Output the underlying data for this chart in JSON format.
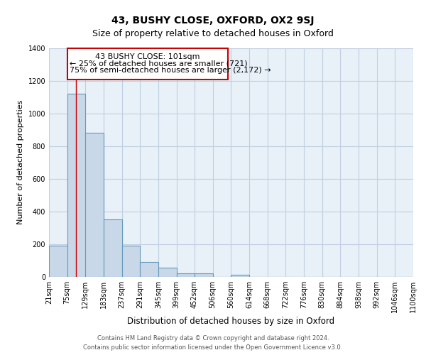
{
  "title": "43, BUSHY CLOSE, OXFORD, OX2 9SJ",
  "subtitle": "Size of property relative to detached houses in Oxford",
  "xlabel": "Distribution of detached houses by size in Oxford",
  "ylabel": "Number of detached properties",
  "bin_edges": [
    21,
    75,
    129,
    183,
    237,
    291,
    345,
    399,
    452,
    506,
    560,
    614,
    668,
    722,
    776,
    830,
    884,
    938,
    992,
    1046,
    1100
  ],
  "bin_heights": [
    192,
    1120,
    880,
    350,
    192,
    90,
    55,
    22,
    20,
    0,
    15,
    0,
    0,
    0,
    0,
    0,
    0,
    0,
    0,
    0
  ],
  "bar_color": "#c8d8e8",
  "bar_edge_color": "#6699bb",
  "bar_edge_width": 0.8,
  "grid_color": "#c0cfe0",
  "bg_color": "#e8f0f8",
  "red_line_x": 101,
  "annotation_line1": "43 BUSHY CLOSE: 101sqm",
  "annotation_line2": "← 25% of detached houses are smaller (721)",
  "annotation_line3": "75% of semi-detached houses are larger (2,172) →",
  "ylim": [
    0,
    1400
  ],
  "yticks": [
    0,
    200,
    400,
    600,
    800,
    1000,
    1200,
    1400
  ],
  "tick_labels": [
    "21sqm",
    "75sqm",
    "129sqm",
    "183sqm",
    "237sqm",
    "291sqm",
    "345sqm",
    "399sqm",
    "452sqm",
    "506sqm",
    "560sqm",
    "614sqm",
    "668sqm",
    "722sqm",
    "776sqm",
    "830sqm",
    "884sqm",
    "938sqm",
    "992sqm",
    "1046sqm",
    "1100sqm"
  ],
  "footnote1": "Contains HM Land Registry data © Crown copyright and database right 2024.",
  "footnote2": "Contains public sector information licensed under the Open Government Licence v3.0.",
  "title_fontsize": 10,
  "subtitle_fontsize": 9,
  "xlabel_fontsize": 8.5,
  "ylabel_fontsize": 8,
  "tick_fontsize": 7,
  "annotation_fontsize": 8,
  "footnote_fontsize": 6
}
